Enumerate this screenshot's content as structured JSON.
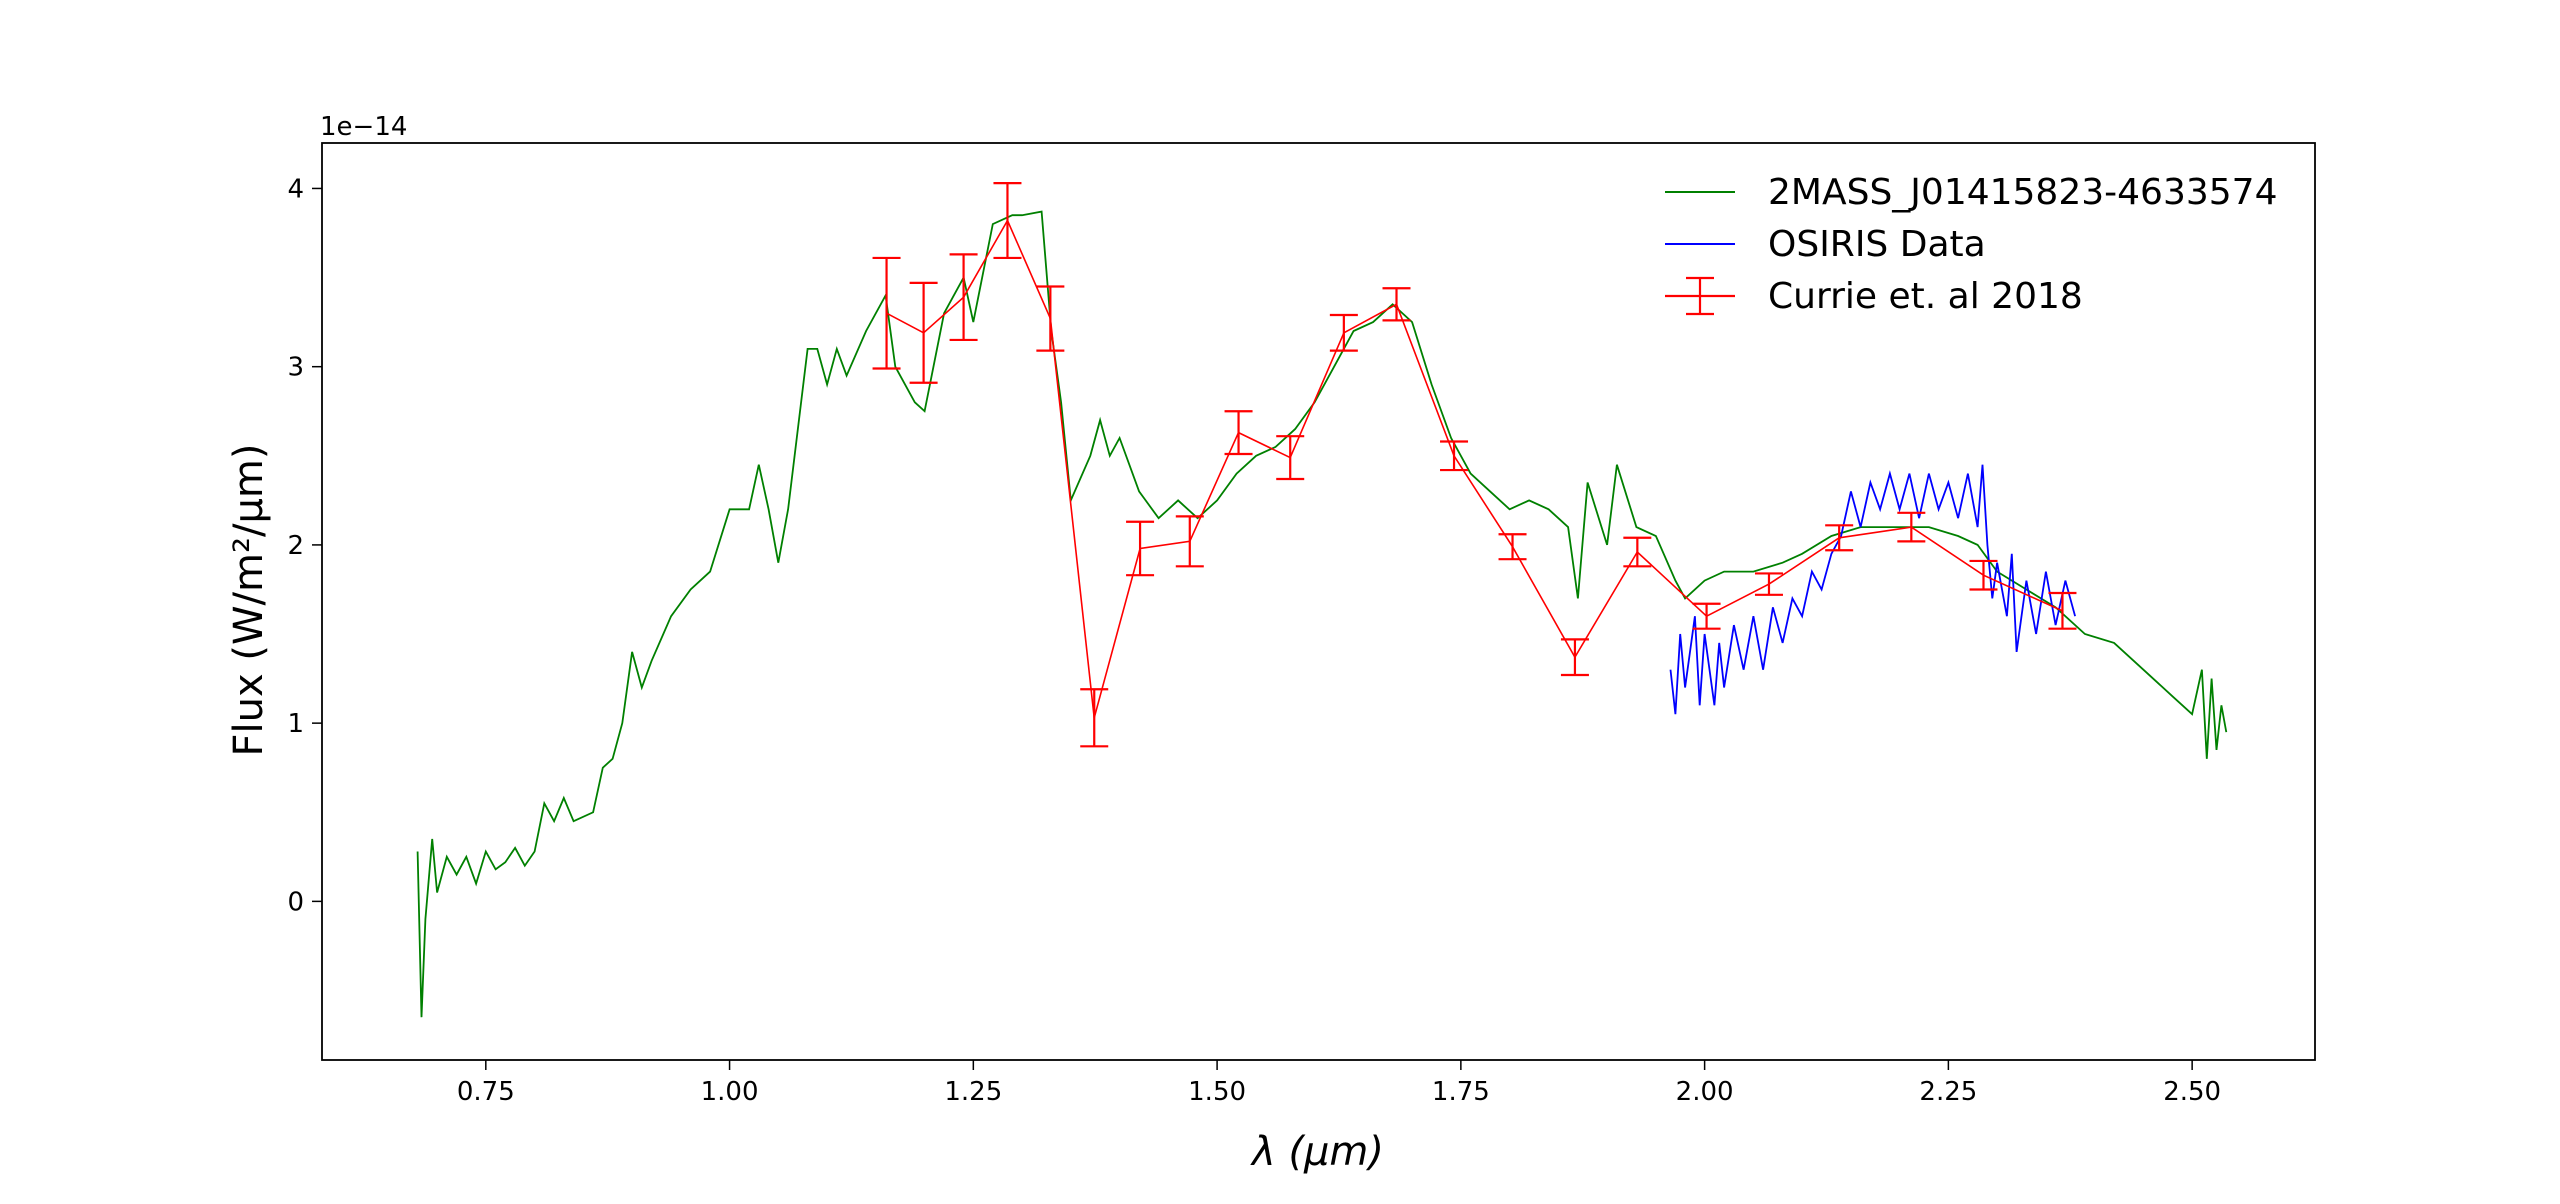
{
  "chart_data": {
    "type": "line",
    "offset_text": "1e−14",
    "xlabel": "λ (μm)",
    "ylabel": "Flux (W/m²/μm)",
    "xlim": [
      0.582,
      2.626
    ],
    "ylim": [
      -0.89,
      4.255
    ],
    "xticks": [
      0.75,
      {
        "value": 1.0,
        "label": "1.00"
      },
      1.25,
      {
        "value": 1.5,
        "label": "1.50"
      },
      1.75,
      {
        "value": 2.0,
        "label": "2.00"
      },
      2.25,
      {
        "value": 2.5,
        "label": "2.50"
      }
    ],
    "yticks": [
      0,
      1,
      2,
      3,
      4
    ],
    "legend": "upper right",
    "series": [
      {
        "name": "2MASS_J01415823-4633574",
        "color": "#008000",
        "x": [
          0.68,
          0.684,
          0.688,
          0.695,
          0.7,
          0.71,
          0.72,
          0.73,
          0.74,
          0.75,
          0.76,
          0.77,
          0.78,
          0.79,
          0.8,
          0.81,
          0.82,
          0.83,
          0.84,
          0.86,
          0.87,
          0.88,
          0.89,
          0.9,
          0.91,
          0.92,
          0.94,
          0.96,
          0.98,
          1.0,
          1.02,
          1.03,
          1.04,
          1.05,
          1.06,
          1.08,
          1.09,
          1.1,
          1.11,
          1.12,
          1.14,
          1.16,
          1.17,
          1.19,
          1.2,
          1.22,
          1.24,
          1.25,
          1.27,
          1.29,
          1.3,
          1.32,
          1.33,
          1.34,
          1.35,
          1.37,
          1.38,
          1.39,
          1.4,
          1.42,
          1.44,
          1.46,
          1.48,
          1.5,
          1.52,
          1.54,
          1.56,
          1.58,
          1.6,
          1.62,
          1.64,
          1.66,
          1.68,
          1.7,
          1.72,
          1.74,
          1.76,
          1.78,
          1.8,
          1.82,
          1.84,
          1.86,
          1.87,
          1.88,
          1.9,
          1.91,
          1.93,
          1.95,
          1.97,
          1.98,
          2.0,
          2.02,
          2.05,
          2.08,
          2.1,
          2.13,
          2.16,
          2.2,
          2.23,
          2.26,
          2.28,
          2.3,
          2.33,
          2.36,
          2.39,
          2.42,
          2.45,
          2.48,
          2.5,
          2.51,
          2.515,
          2.52,
          2.525,
          2.53,
          2.535
        ],
        "values": [
          0.28,
          -0.65,
          -0.1,
          0.35,
          0.05,
          0.25,
          0.15,
          0.25,
          0.1,
          0.28,
          0.18,
          0.22,
          0.3,
          0.2,
          0.28,
          0.55,
          0.45,
          0.58,
          0.45,
          0.5,
          0.75,
          0.8,
          1.0,
          1.4,
          1.2,
          1.35,
          1.6,
          1.75,
          1.85,
          2.2,
          2.2,
          2.45,
          2.2,
          1.9,
          2.2,
          3.1,
          3.1,
          2.9,
          3.1,
          2.95,
          3.2,
          3.4,
          3.0,
          2.8,
          2.75,
          3.3,
          3.5,
          3.25,
          3.8,
          3.85,
          3.85,
          3.87,
          3.2,
          2.8,
          2.25,
          2.5,
          2.7,
          2.5,
          2.6,
          2.3,
          2.15,
          2.25,
          2.15,
          2.25,
          2.4,
          2.5,
          2.55,
          2.65,
          2.8,
          3.0,
          3.2,
          3.25,
          3.35,
          3.25,
          2.9,
          2.6,
          2.4,
          2.3,
          2.2,
          2.25,
          2.2,
          2.1,
          1.7,
          2.35,
          2.0,
          2.45,
          2.1,
          2.05,
          1.8,
          1.7,
          1.8,
          1.85,
          1.85,
          1.9,
          1.95,
          2.05,
          2.1,
          2.1,
          2.1,
          2.05,
          2.0,
          1.85,
          1.75,
          1.65,
          1.5,
          1.45,
          1.3,
          1.15,
          1.05,
          1.3,
          0.8,
          1.25,
          0.85,
          1.1,
          0.95
        ]
      },
      {
        "name": "OSIRIS Data",
        "color": "#0000ff",
        "x": [
          1.965,
          1.97,
          1.975,
          1.98,
          1.99,
          1.995,
          2.0,
          2.01,
          2.015,
          2.02,
          2.03,
          2.04,
          2.05,
          2.06,
          2.07,
          2.08,
          2.09,
          2.1,
          2.11,
          2.12,
          2.13,
          2.14,
          2.15,
          2.16,
          2.17,
          2.18,
          2.19,
          2.2,
          2.21,
          2.22,
          2.23,
          2.24,
          2.25,
          2.26,
          2.27,
          2.28,
          2.285,
          2.29,
          2.295,
          2.3,
          2.31,
          2.315,
          2.32,
          2.33,
          2.34,
          2.35,
          2.36,
          2.37,
          2.38
        ],
        "values": [
          1.3,
          1.05,
          1.5,
          1.2,
          1.6,
          1.1,
          1.5,
          1.1,
          1.45,
          1.2,
          1.55,
          1.3,
          1.6,
          1.3,
          1.65,
          1.45,
          1.7,
          1.6,
          1.85,
          1.75,
          1.95,
          2.05,
          2.3,
          2.1,
          2.35,
          2.2,
          2.4,
          2.2,
          2.4,
          2.15,
          2.4,
          2.2,
          2.35,
          2.15,
          2.4,
          2.1,
          2.45,
          2.0,
          1.7,
          1.9,
          1.6,
          1.95,
          1.4,
          1.8,
          1.5,
          1.85,
          1.55,
          1.8,
          1.6
        ]
      },
      {
        "name": "Currie et. al 2018",
        "color": "#ff0000",
        "x": [
          1.161,
          1.199,
          1.24,
          1.285,
          1.329,
          1.374,
          1.421,
          1.472,
          1.522,
          1.575,
          1.63,
          1.684,
          1.743,
          1.803,
          1.867,
          1.931,
          2.002,
          2.066,
          2.138,
          2.212,
          2.286,
          2.367
        ],
        "values": [
          3.3,
          3.19,
          3.39,
          3.82,
          3.27,
          1.03,
          1.98,
          2.02,
          2.63,
          2.49,
          3.19,
          3.35,
          2.5,
          1.99,
          1.37,
          1.96,
          1.6,
          1.78,
          2.04,
          2.1,
          1.83,
          1.63
        ],
        "errors": [
          0.31,
          0.28,
          0.24,
          0.21,
          0.18,
          0.16,
          0.15,
          0.14,
          0.12,
          0.12,
          0.1,
          0.09,
          0.08,
          0.07,
          0.1,
          0.08,
          0.07,
          0.06,
          0.07,
          0.08,
          0.08,
          0.1
        ]
      }
    ]
  }
}
